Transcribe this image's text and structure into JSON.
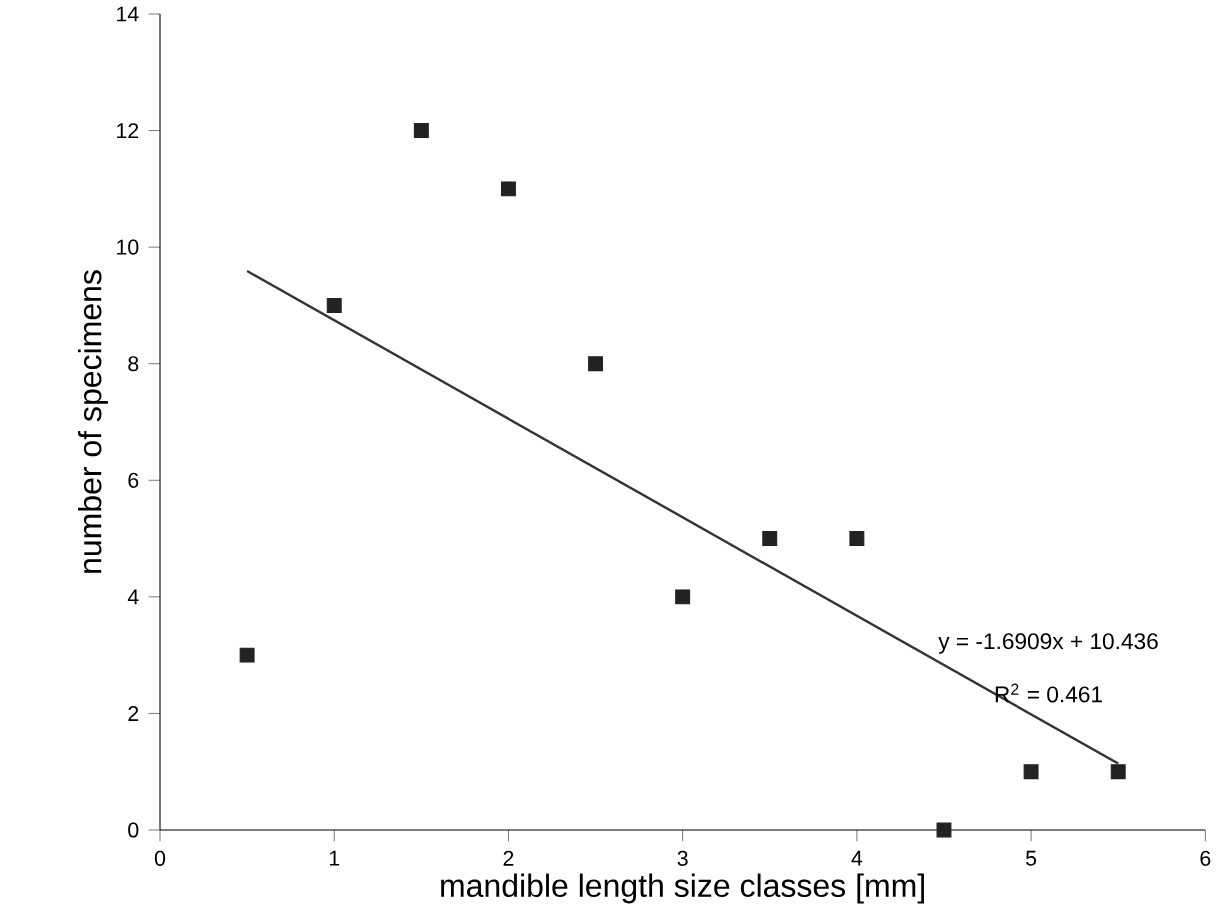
{
  "chart_data": {
    "type": "scatter",
    "xlabel": "mandible length size classes [mm]",
    "ylabel": "number of specimens",
    "xlim": [
      0,
      6
    ],
    "xticks": [
      0,
      1,
      2,
      3,
      4,
      5,
      6
    ],
    "ylim": [
      0,
      14
    ],
    "yticks": [
      0,
      2,
      4,
      6,
      8,
      10,
      12,
      14
    ],
    "grid": false,
    "series": [
      {
        "marker": "square",
        "color": "#222222",
        "x": [
          0.5,
          1,
          1.5,
          2,
          2.5,
          3,
          3.5,
          4,
          4.5,
          5,
          5.5
        ],
        "values": [
          3,
          9,
          12,
          11,
          8,
          4,
          5,
          5,
          0,
          1,
          1
        ]
      },
      {
        "type": "line",
        "marker": "none",
        "line_style": "solid",
        "color": "#333333",
        "x": [
          0.5,
          5.5
        ],
        "values": [
          9.59,
          1.14
        ]
      }
    ],
    "annotations": [
      "y = -1.6909x + 10.436",
      "R$^{2}$ = 0.461"
    ]
  }
}
